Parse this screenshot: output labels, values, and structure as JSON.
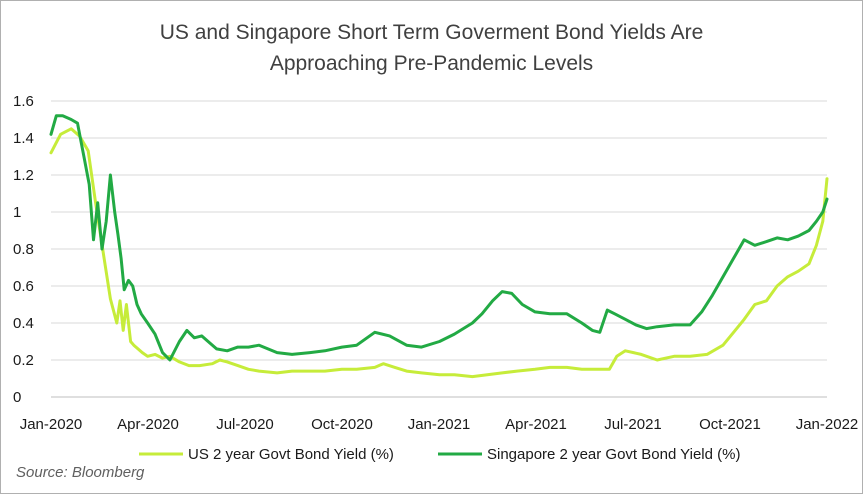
{
  "chart_data": {
    "type": "line",
    "title_line1": "US and Singapore Short Term Goverment Bond Yields Are",
    "title_line2": "Approaching Pre-Pandemic Levels",
    "source": "Source: Bloomberg",
    "x_ticks": [
      "Jan-2020",
      "Apr-2020",
      "Jul-2020",
      "Oct-2020",
      "Jan-2021",
      "Apr-2021",
      "Jul-2021",
      "Oct-2021",
      "Jan-2022"
    ],
    "y_ticks": [
      "0",
      "0.2",
      "0.4",
      "0.6",
      "0.8",
      "1",
      "1.2",
      "1.4",
      "1.6"
    ],
    "xlim": [
      "2020-01-01",
      "2022-01-01"
    ],
    "ylim": [
      0,
      1.6
    ],
    "grid": true,
    "legend_position": "bottom",
    "series": [
      {
        "name": "US 2 year Govt Bond Yield (%)",
        "color": "#c6ec3a",
        "x": [
          "2020-01-01",
          "2020-01-10",
          "2020-01-20",
          "2020-01-28",
          "2020-02-05",
          "2020-02-12",
          "2020-02-20",
          "2020-02-26",
          "2020-03-03",
          "2020-03-06",
          "2020-03-09",
          "2020-03-12",
          "2020-03-16",
          "2020-03-19",
          "2020-03-23",
          "2020-03-27",
          "2020-04-01",
          "2020-04-08",
          "2020-04-15",
          "2020-04-22",
          "2020-05-01",
          "2020-05-10",
          "2020-05-20",
          "2020-06-01",
          "2020-06-08",
          "2020-06-15",
          "2020-06-25",
          "2020-07-05",
          "2020-07-15",
          "2020-08-01",
          "2020-08-15",
          "2020-09-01",
          "2020-09-15",
          "2020-10-01",
          "2020-10-15",
          "2020-11-01",
          "2020-11-09",
          "2020-11-20",
          "2020-12-01",
          "2020-12-15",
          "2021-01-01",
          "2021-01-15",
          "2021-02-01",
          "2021-02-15",
          "2021-03-01",
          "2021-03-15",
          "2021-04-01",
          "2021-04-15",
          "2021-05-01",
          "2021-05-15",
          "2021-06-01",
          "2021-06-10",
          "2021-06-17",
          "2021-06-25",
          "2021-07-10",
          "2021-07-25",
          "2021-08-10",
          "2021-08-25",
          "2021-09-10",
          "2021-09-25",
          "2021-10-05",
          "2021-10-15",
          "2021-10-25",
          "2021-11-05",
          "2021-11-15",
          "2021-11-25",
          "2021-12-05",
          "2021-12-15",
          "2021-12-22",
          "2021-12-28",
          "2022-01-01"
        ],
        "y": [
          1.32,
          1.42,
          1.45,
          1.41,
          1.33,
          1.05,
          0.75,
          0.53,
          0.4,
          0.52,
          0.36,
          0.5,
          0.3,
          0.28,
          0.26,
          0.24,
          0.22,
          0.23,
          0.21,
          0.22,
          0.19,
          0.17,
          0.17,
          0.18,
          0.2,
          0.19,
          0.17,
          0.15,
          0.14,
          0.13,
          0.14,
          0.14,
          0.14,
          0.15,
          0.15,
          0.16,
          0.18,
          0.16,
          0.14,
          0.13,
          0.12,
          0.12,
          0.11,
          0.12,
          0.13,
          0.14,
          0.15,
          0.16,
          0.16,
          0.15,
          0.15,
          0.15,
          0.22,
          0.25,
          0.23,
          0.2,
          0.22,
          0.22,
          0.23,
          0.28,
          0.35,
          0.42,
          0.5,
          0.52,
          0.6,
          0.65,
          0.68,
          0.72,
          0.82,
          0.95,
          1.18
        ]
      },
      {
        "name": "Singapore 2 year Govt Bond Yield (%)",
        "color": "#22aa44",
        "x": [
          "2020-01-01",
          "2020-01-06",
          "2020-01-12",
          "2020-01-20",
          "2020-01-26",
          "2020-02-01",
          "2020-02-06",
          "2020-02-10",
          "2020-02-14",
          "2020-02-18",
          "2020-02-22",
          "2020-02-26",
          "2020-03-01",
          "2020-03-04",
          "2020-03-07",
          "2020-03-10",
          "2020-03-14",
          "2020-03-18",
          "2020-03-22",
          "2020-03-26",
          "2020-04-01",
          "2020-04-08",
          "2020-04-15",
          "2020-04-22",
          "2020-05-01",
          "2020-05-08",
          "2020-05-15",
          "2020-05-22",
          "2020-05-28",
          "2020-06-05",
          "2020-06-15",
          "2020-06-25",
          "2020-07-05",
          "2020-07-15",
          "2020-08-01",
          "2020-08-15",
          "2020-09-01",
          "2020-09-15",
          "2020-10-01",
          "2020-10-15",
          "2020-11-01",
          "2020-11-15",
          "2020-12-01",
          "2020-12-15",
          "2021-01-01",
          "2021-01-15",
          "2021-02-01",
          "2021-02-10",
          "2021-02-20",
          "2021-03-01",
          "2021-03-10",
          "2021-03-20",
          "2021-04-01",
          "2021-04-15",
          "2021-05-01",
          "2021-05-15",
          "2021-05-25",
          "2021-06-01",
          "2021-06-08",
          "2021-06-15",
          "2021-06-25",
          "2021-07-05",
          "2021-07-15",
          "2021-07-25",
          "2021-08-10",
          "2021-08-25",
          "2021-09-05",
          "2021-09-15",
          "2021-09-25",
          "2021-10-05",
          "2021-10-15",
          "2021-10-25",
          "2021-11-05",
          "2021-11-15",
          "2021-11-25",
          "2021-12-05",
          "2021-12-15",
          "2021-12-22",
          "2021-12-28",
          "2022-01-01"
        ],
        "y": [
          1.42,
          1.52,
          1.52,
          1.5,
          1.48,
          1.3,
          1.15,
          0.85,
          1.05,
          0.8,
          0.95,
          1.2,
          1.0,
          0.88,
          0.75,
          0.58,
          0.63,
          0.6,
          0.5,
          0.45,
          0.4,
          0.34,
          0.24,
          0.2,
          0.3,
          0.36,
          0.32,
          0.33,
          0.3,
          0.26,
          0.25,
          0.27,
          0.27,
          0.28,
          0.24,
          0.23,
          0.24,
          0.25,
          0.27,
          0.28,
          0.35,
          0.33,
          0.28,
          0.27,
          0.3,
          0.34,
          0.4,
          0.45,
          0.52,
          0.57,
          0.56,
          0.5,
          0.46,
          0.45,
          0.45,
          0.4,
          0.36,
          0.35,
          0.47,
          0.45,
          0.42,
          0.39,
          0.37,
          0.38,
          0.39,
          0.39,
          0.46,
          0.55,
          0.65,
          0.75,
          0.85,
          0.82,
          0.84,
          0.86,
          0.85,
          0.87,
          0.9,
          0.95,
          1.0,
          1.07
        ]
      }
    ]
  }
}
